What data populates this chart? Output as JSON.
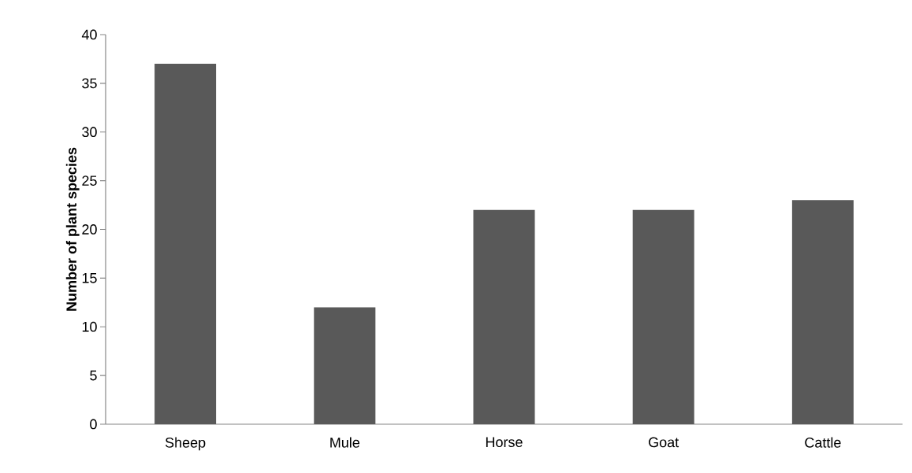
{
  "chart_data": {
    "type": "bar",
    "ylabel": "Number of plant species",
    "categories": [
      "Sheep",
      "Mule",
      "Horse",
      "Goat",
      "Cattle"
    ],
    "values": [
      37,
      12,
      22,
      22,
      23
    ],
    "color": "#595959",
    "ylim": [
      0,
      40
    ],
    "yticks": [
      0,
      5,
      10,
      15,
      20,
      25,
      30,
      35,
      40
    ]
  }
}
